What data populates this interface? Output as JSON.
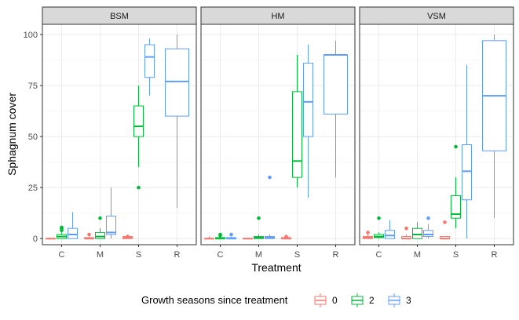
{
  "chart_data": {
    "type": "boxplot",
    "xlabel": "Treatment",
    "ylabel": "Sphagnum cover",
    "ylim": [
      -3,
      105
    ],
    "yticks": [
      0,
      25,
      50,
      75,
      100
    ],
    "categories": [
      "C",
      "M",
      "S",
      "R"
    ],
    "grid": true,
    "legend": {
      "title": "Growth seasons since treatment",
      "placement": "bottom",
      "entries": [
        {
          "label": "0",
          "color": "#F8766D"
        },
        {
          "label": "2",
          "color": "#00BA38"
        },
        {
          "label": "3",
          "color": "#619CFF"
        }
      ]
    },
    "panels": [
      {
        "name": "BSM",
        "boxes": [
          {
            "category": "C",
            "group": "0",
            "min": 0,
            "q1": 0,
            "median": 0,
            "q3": 0,
            "max": 0,
            "outliers": []
          },
          {
            "category": "C",
            "group": "2",
            "min": 0,
            "q1": 0,
            "median": 1,
            "q3": 2,
            "max": 3,
            "outliers": [
              4,
              5,
              5.5
            ]
          },
          {
            "category": "C",
            "group": "3",
            "min": 0,
            "q1": 0,
            "median": 2,
            "q3": 5,
            "max": 13,
            "outliers": []
          },
          {
            "category": "M",
            "group": "0",
            "min": 0,
            "q1": 0,
            "median": 0,
            "q3": 0.5,
            "max": 1,
            "outliers": [
              2
            ]
          },
          {
            "category": "M",
            "group": "2",
            "min": 0,
            "q1": 0,
            "median": 1,
            "q3": 3,
            "max": 5,
            "outliers": [
              10
            ]
          },
          {
            "category": "M",
            "group": "3",
            "min": 0,
            "q1": 2,
            "median": 3,
            "q3": 11,
            "max": 25,
            "outliers": []
          },
          {
            "category": "S",
            "group": "0",
            "min": 0,
            "q1": 0,
            "median": 0.5,
            "q3": 1,
            "max": 1,
            "outliers": [
              1
            ]
          },
          {
            "category": "S",
            "group": "2",
            "min": 35,
            "q1": 50,
            "median": 55,
            "q3": 65,
            "max": 75,
            "outliers": [
              25
            ]
          },
          {
            "category": "S",
            "group": "3",
            "min": 70,
            "q1": 79,
            "median": 89,
            "q3": 95,
            "max": 98,
            "outliers": []
          },
          {
            "category": "R",
            "group": "3",
            "min": 15,
            "q1": 60,
            "median": 77,
            "q3": 93,
            "max": 100,
            "outliers": []
          }
        ]
      },
      {
        "name": "HM",
        "boxes": [
          {
            "category": "C",
            "group": "0",
            "min": 0,
            "q1": 0,
            "median": 0,
            "q3": 0,
            "max": 1,
            "outliers": []
          },
          {
            "category": "C",
            "group": "2",
            "min": 0,
            "q1": 0,
            "median": 0,
            "q3": 0.5,
            "max": 1,
            "outliers": [
              1.5,
              2
            ]
          },
          {
            "category": "C",
            "group": "3",
            "min": 0,
            "q1": 0,
            "median": 0,
            "q3": 0.5,
            "max": 1,
            "outliers": [
              2
            ]
          },
          {
            "category": "M",
            "group": "0",
            "min": 0,
            "q1": 0,
            "median": 0,
            "q3": 0,
            "max": 0,
            "outliers": []
          },
          {
            "category": "M",
            "group": "2",
            "min": 0,
            "q1": 0,
            "median": 0.5,
            "q3": 1,
            "max": 2,
            "outliers": [
              10
            ]
          },
          {
            "category": "M",
            "group": "3",
            "min": 0,
            "q1": 0,
            "median": 0.5,
            "q3": 1,
            "max": 2,
            "outliers": [
              30
            ]
          },
          {
            "category": "S",
            "group": "0",
            "min": 0,
            "q1": 0,
            "median": 0,
            "q3": 0.5,
            "max": 1,
            "outliers": [
              1
            ]
          },
          {
            "category": "S",
            "group": "2",
            "min": 25,
            "q1": 30,
            "median": 38,
            "q3": 72,
            "max": 90,
            "outliers": []
          },
          {
            "category": "S",
            "group": "3",
            "min": 20,
            "q1": 50,
            "median": 67,
            "q3": 86,
            "max": 95,
            "outliers": []
          },
          {
            "category": "R",
            "group": "3",
            "min": 30,
            "q1": 61,
            "median": 90,
            "q3": 90,
            "max": 97,
            "outliers": []
          }
        ]
      },
      {
        "name": "VSM",
        "boxes": [
          {
            "category": "C",
            "group": "0",
            "min": 0,
            "q1": 0,
            "median": 0.5,
            "q3": 1,
            "max": 2,
            "outliers": [
              3
            ]
          },
          {
            "category": "C",
            "group": "2",
            "min": 0,
            "q1": 0.5,
            "median": 1,
            "q3": 2,
            "max": 3,
            "outliers": [
              10
            ]
          },
          {
            "category": "C",
            "group": "3",
            "min": 0,
            "q1": 0,
            "median": 1.5,
            "q3": 4,
            "max": 9,
            "outliers": []
          },
          {
            "category": "M",
            "group": "0",
            "min": 0,
            "q1": 0,
            "median": 0,
            "q3": 1,
            "max": 2,
            "outliers": [
              5
            ]
          },
          {
            "category": "M",
            "group": "2",
            "min": 0,
            "q1": 0,
            "median": 2,
            "q3": 5,
            "max": 8,
            "outliers": []
          },
          {
            "category": "M",
            "group": "3",
            "min": 0,
            "q1": 1,
            "median": 2,
            "q3": 4,
            "max": 7,
            "outliers": [
              10
            ]
          },
          {
            "category": "S",
            "group": "0",
            "min": 0,
            "q1": 0,
            "median": 0,
            "q3": 1,
            "max": 1,
            "outliers": [
              8
            ]
          },
          {
            "category": "S",
            "group": "2",
            "min": 5,
            "q1": 10,
            "median": 12,
            "q3": 21,
            "max": 30,
            "outliers": [
              45
            ]
          },
          {
            "category": "S",
            "group": "3",
            "min": 0,
            "q1": 19,
            "median": 33,
            "q3": 46,
            "max": 85,
            "outliers": []
          },
          {
            "category": "R",
            "group": "3",
            "min": 10,
            "q1": 43,
            "median": 70,
            "q3": 97,
            "max": 100,
            "outliers": []
          }
        ]
      }
    ]
  }
}
